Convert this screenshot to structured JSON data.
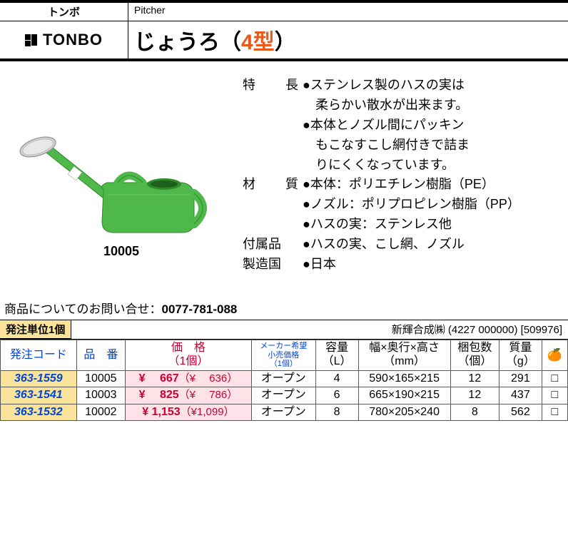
{
  "header": {
    "brand_kana": "トンボ",
    "category_en": "Pitcher",
    "brand_roman": "TONBO",
    "product_name_pre": "じょうろ（",
    "product_name_em": "4型",
    "product_name_post": "）"
  },
  "image_caption": "10005",
  "specs": {
    "feature_label": "特　長",
    "feature_lines": [
      "ステンレス製のハスの実は",
      "柔らかい散水が出来ます。",
      "本体とノズル間にパッキン",
      "もこなすこし網付きで詰ま",
      "りにくくなっています。"
    ],
    "material_label": "材　質",
    "material_lines": [
      "本体：ポリエチレン樹脂（PE）",
      "ノズル：ポリプロピレン樹脂（PP）",
      "ハスの実：ステンレス他"
    ],
    "accessory_label": "付属品",
    "accessory_value": "ハスの実、こし網、ノズル",
    "country_label": "製造国",
    "country_value": "日本"
  },
  "contact": {
    "prefix": "商品についてのお問い合せ：",
    "phone": "0077-781-088"
  },
  "order": {
    "unit_label": "発注単位1個",
    "supplier": "新輝合成㈱ (4227 000000) [509976]"
  },
  "table": {
    "headers": {
      "code": "発注コード",
      "partno": "品　番",
      "price": "価　格",
      "price_sub": "（1個）",
      "msrp1": "メーカー希望",
      "msrp2": "小売価格",
      "msrp3": "（1個）",
      "capacity": "容量",
      "capacity_unit": "（L）",
      "dims": "幅×奥行×高さ",
      "dims_unit": "（mm）",
      "packqty": "梱包数",
      "packqty_unit": "（個）",
      "mass": "質量",
      "mass_unit": "（g）"
    },
    "rows": [
      {
        "code": "363-1559",
        "partno": "10005",
        "price_main": "¥　 667",
        "price_sub": "（¥　 636）",
        "msrp": "オープン",
        "capacity": "4",
        "dims": "590×165×215",
        "packqty": "12",
        "mass": "291"
      },
      {
        "code": "363-1541",
        "partno": "10003",
        "price_main": "¥　 825",
        "price_sub": "（¥　 786）",
        "msrp": "オープン",
        "capacity": "6",
        "dims": "665×190×215",
        "packqty": "12",
        "mass": "437"
      },
      {
        "code": "363-1532",
        "partno": "10002",
        "price_main": "¥ 1,153",
        "price_sub": "（¥1,099）",
        "msrp": "オープン",
        "capacity": "8",
        "dims": "780×205×240",
        "packqty": "8",
        "mass": "562"
      }
    ]
  },
  "illustration": {
    "body_color": "#4fb84a",
    "body_stroke": "#2e8a2a",
    "nozzle_color": "#4fb84a",
    "rose_color": "#cfcfcf",
    "rose_stroke": "#888888",
    "ring_color": "#ffffff"
  }
}
